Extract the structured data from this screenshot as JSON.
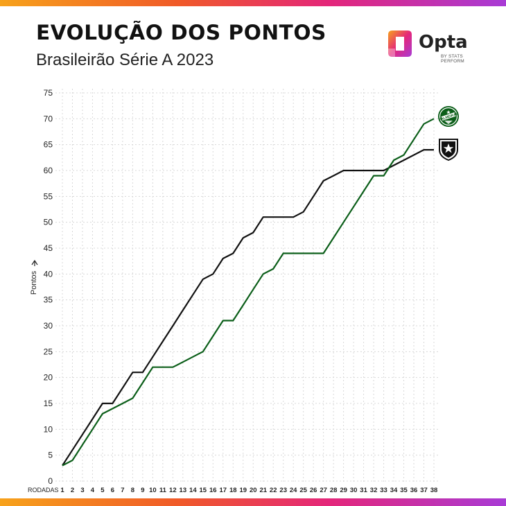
{
  "header": {
    "title": "EVOLUÇÃO DOS PONTOS",
    "subtitle": "Brasileirão Série A 2023"
  },
  "brand": {
    "name": "Opta",
    "tag": "BY STATS PERFORM"
  },
  "colors": {
    "palmeiras": "#0b5e19",
    "botafogo": "#111111",
    "gradient": [
      "#f7a21b",
      "#f05a28",
      "#e4267a",
      "#a83bd6"
    ]
  },
  "chart_data": {
    "type": "line",
    "title": "EVOLUÇÃO DOS PONTOS",
    "subtitle": "Brasileirão Série A 2023",
    "xlabel": "RODADAS",
    "ylabel": "Pontos",
    "ylim": [
      0,
      75
    ],
    "yticks": [
      0,
      5,
      10,
      15,
      20,
      25,
      30,
      35,
      40,
      45,
      50,
      55,
      60,
      65,
      70,
      75
    ],
    "x": [
      1,
      2,
      3,
      4,
      5,
      6,
      7,
      8,
      9,
      10,
      11,
      12,
      13,
      14,
      15,
      16,
      17,
      18,
      19,
      20,
      21,
      22,
      23,
      24,
      25,
      26,
      27,
      28,
      29,
      30,
      31,
      32,
      33,
      34,
      35,
      36,
      37,
      38
    ],
    "grid": true,
    "legend": "team crests at line ends (right)",
    "series": [
      {
        "name": "Botafogo",
        "icon": "botafogo-crest-icon",
        "color": "#111111",
        "values": [
          3,
          6,
          9,
          12,
          15,
          15,
          18,
          21,
          21,
          24,
          27,
          30,
          33,
          36,
          39,
          40,
          43,
          44,
          47,
          48,
          51,
          51,
          51,
          51,
          52,
          55,
          58,
          59,
          60,
          60,
          60,
          60,
          60,
          61,
          62,
          63,
          64,
          64
        ]
      },
      {
        "name": "Palmeiras",
        "icon": "palmeiras-crest-icon",
        "color": "#0b5e19",
        "values": [
          3,
          4,
          7,
          10,
          13,
          14,
          15,
          16,
          19,
          22,
          22,
          22,
          23,
          24,
          25,
          28,
          31,
          31,
          34,
          37,
          40,
          41,
          44,
          44,
          44,
          44,
          44,
          47,
          50,
          53,
          56,
          59,
          59,
          62,
          63,
          66,
          69,
          70
        ]
      }
    ]
  }
}
